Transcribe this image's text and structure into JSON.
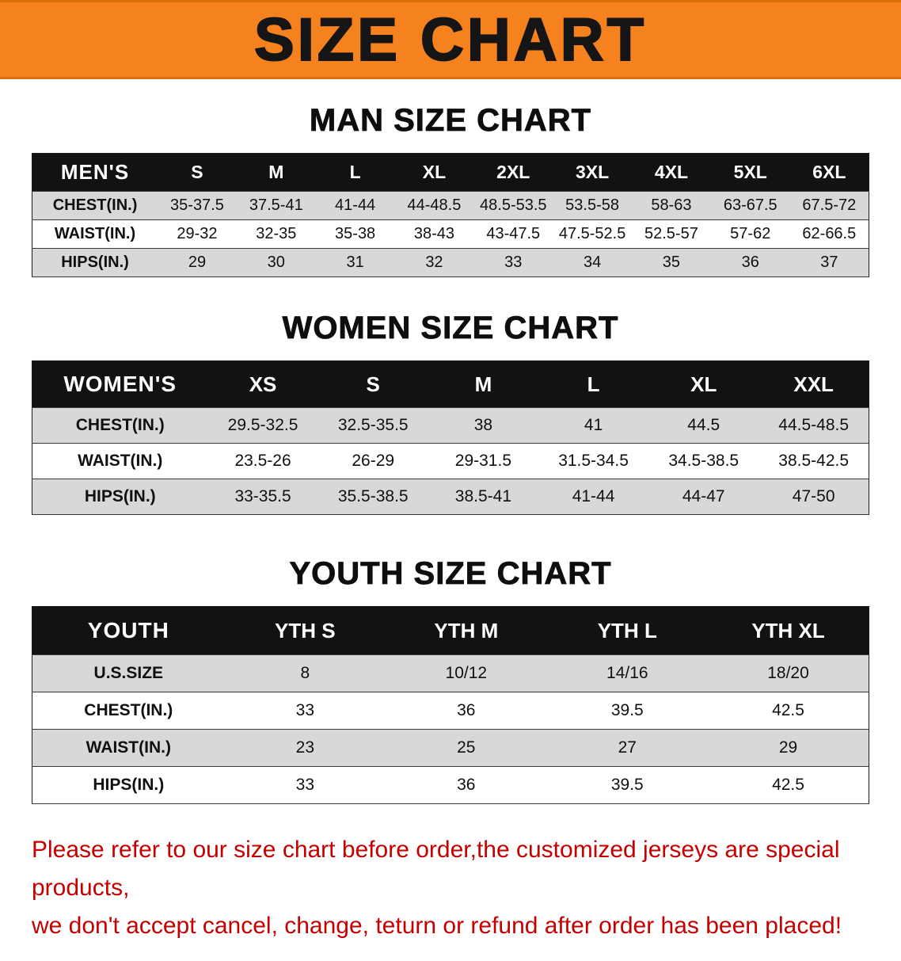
{
  "banner": {
    "title": "SIZE CHART"
  },
  "accent_colors": {
    "banner_orange": "#F5821F",
    "table_header_black": "#121212",
    "row_gray": "#d8d8d8",
    "notice_red": "#c40000"
  },
  "sections": [
    {
      "heading": "MAN SIZE CHART",
      "table": {
        "header": [
          "MEN'S",
          "S",
          "M",
          "L",
          "XL",
          "2XL",
          "3XL",
          "4XL",
          "5XL",
          "6XL"
        ],
        "rows": [
          [
            "CHEST(IN.)",
            "35-37.5",
            "37.5-41",
            "41-44",
            "44-48.5",
            "48.5-53.5",
            "53.5-58",
            "58-63",
            "63-67.5",
            "67.5-72"
          ],
          [
            "WAIST(IN.)",
            "29-32",
            "32-35",
            "35-38",
            "38-43",
            "43-47.5",
            "47.5-52.5",
            "52.5-57",
            "57-62",
            "62-66.5"
          ],
          [
            "HIPS(IN.)",
            "29",
            "30",
            "31",
            "32",
            "33",
            "34",
            "35",
            "36",
            "37"
          ]
        ]
      }
    },
    {
      "heading": "WOMEN SIZE CHART",
      "table": {
        "header": [
          "WOMEN'S",
          "XS",
          "S",
          "M",
          "L",
          "XL",
          "XXL"
        ],
        "rows": [
          [
            "CHEST(IN.)",
            "29.5-32.5",
            "32.5-35.5",
            "38",
            "41",
            "44.5",
            "44.5-48.5"
          ],
          [
            "WAIST(IN.)",
            "23.5-26",
            "26-29",
            "29-31.5",
            "31.5-34.5",
            "34.5-38.5",
            "38.5-42.5"
          ],
          [
            "HIPS(IN.)",
            "33-35.5",
            "35.5-38.5",
            "38.5-41",
            "41-44",
            "44-47",
            "47-50"
          ]
        ]
      }
    },
    {
      "heading": "YOUTH SIZE CHART",
      "table": {
        "header": [
          "YOUTH",
          "YTH S",
          "YTH M",
          "YTH L",
          "YTH XL"
        ],
        "rows": [
          [
            "U.S.SIZE",
            "8",
            "10/12",
            "14/16",
            "18/20"
          ],
          [
            "CHEST(IN.)",
            "33",
            "36",
            "39.5",
            "42.5"
          ],
          [
            "WAIST(IN.)",
            "23",
            "25",
            "27",
            "29"
          ],
          [
            "HIPS(IN.)",
            "33",
            "36",
            "39.5",
            "42.5"
          ]
        ]
      }
    }
  ],
  "footer": {
    "line1": "Please refer to our size chart before order,the customized jerseys are special products,",
    "line2": "we don't accept cancel, change, teturn or refund after order has been placed!"
  }
}
